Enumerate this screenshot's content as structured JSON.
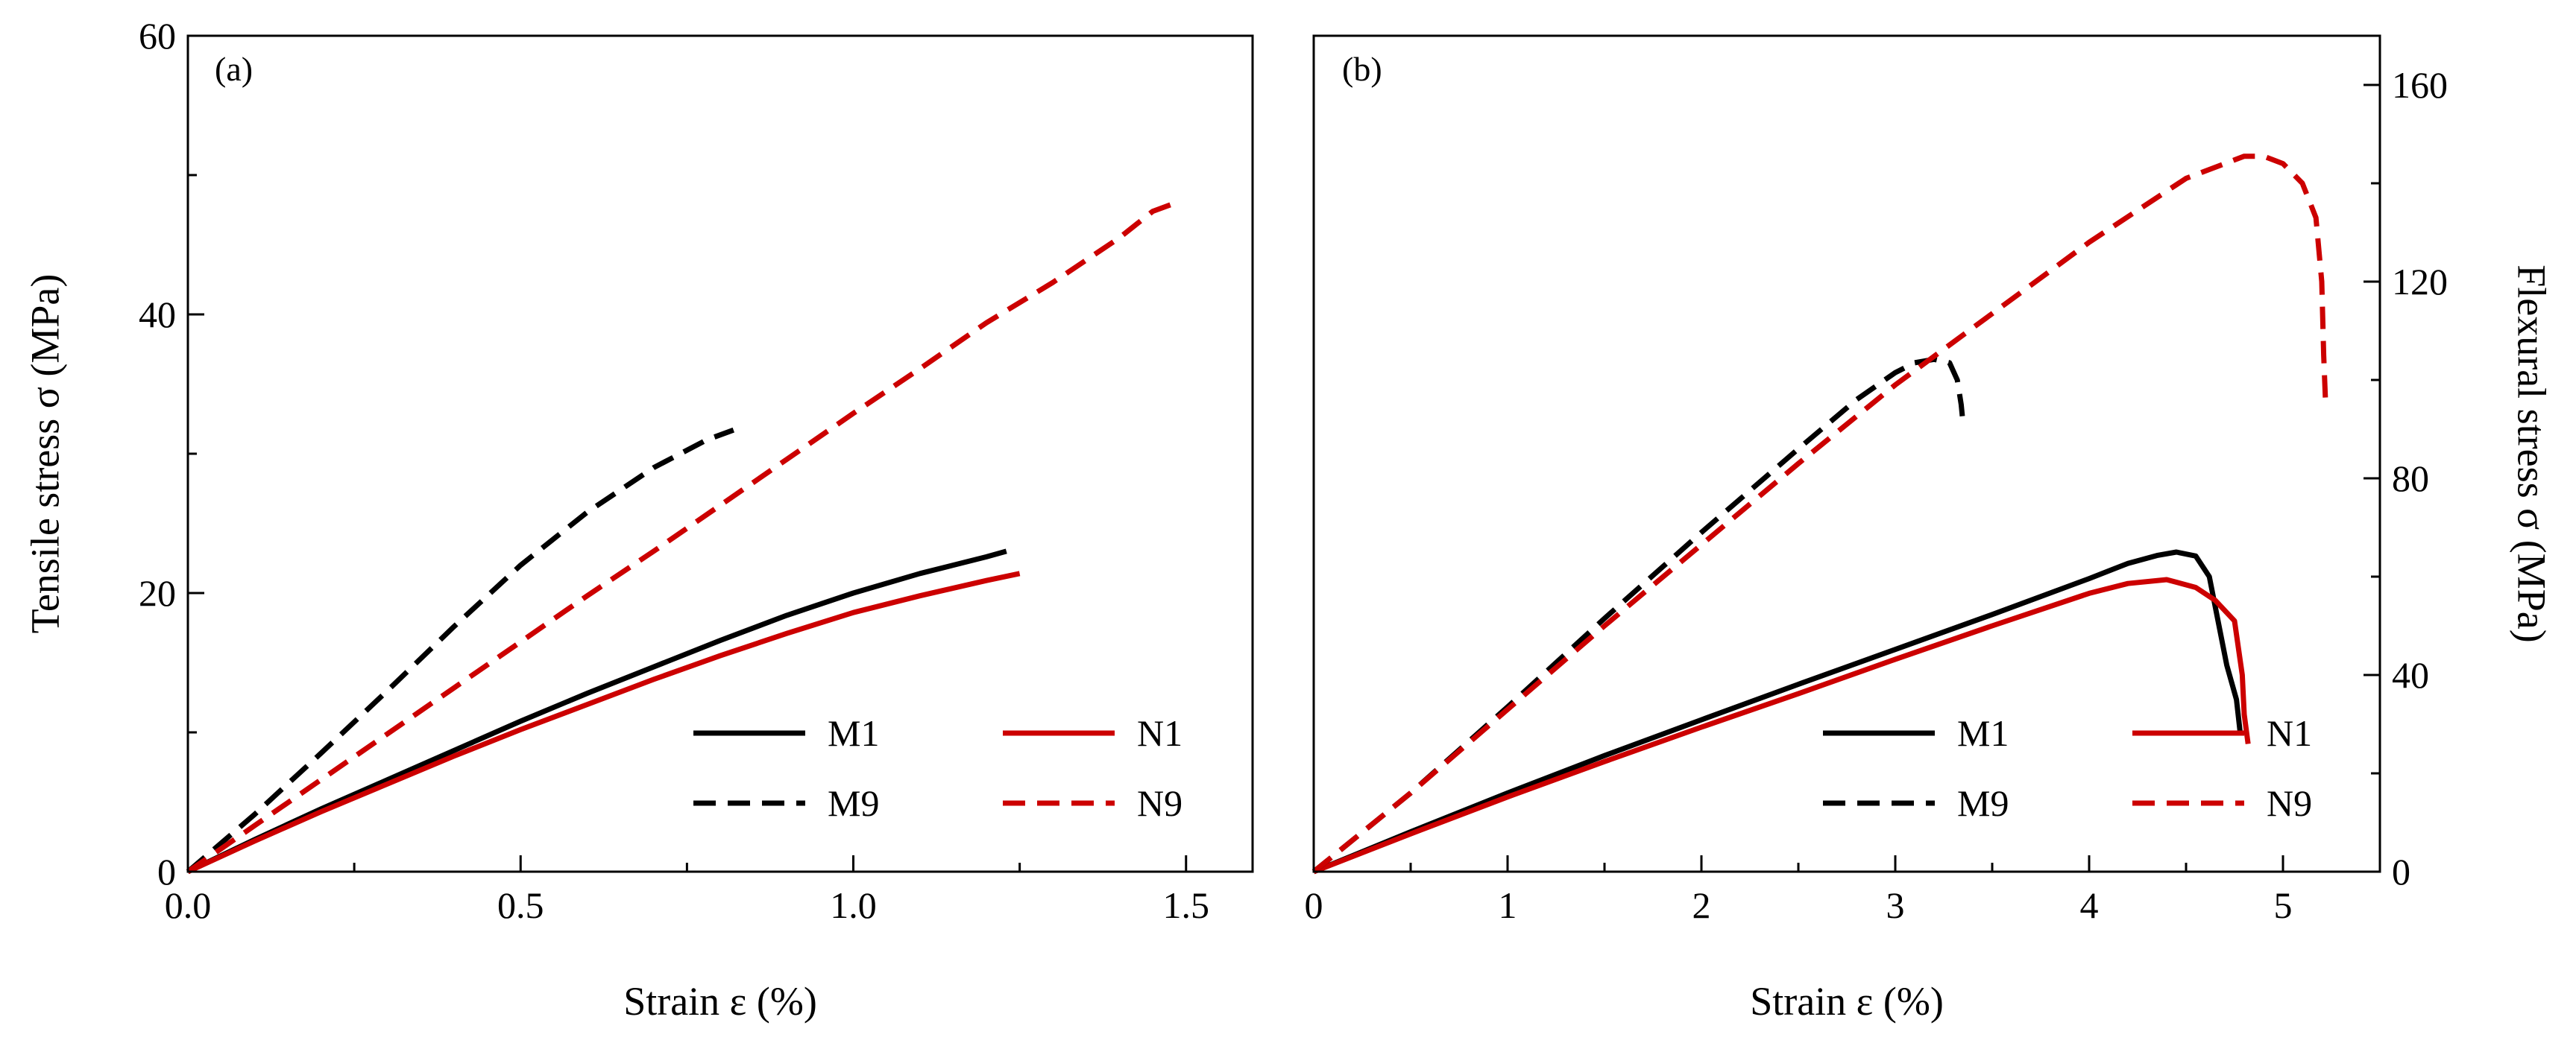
{
  "chart_data": [
    {
      "type": "line",
      "panel_label": "(a)",
      "xlabel": "Strain ε (%)",
      "ylabel": "Tensile stress σ (MPa)",
      "xlim": [
        0,
        1.6
      ],
      "ylim": [
        0,
        60
      ],
      "xticks": [
        {
          "value": 0.0,
          "label": "0.0"
        },
        {
          "value": 0.5,
          "label": "0.5"
        },
        {
          "value": 1.0,
          "label": "1.0"
        },
        {
          "value": 1.5,
          "label": "1.5"
        }
      ],
      "yticks": [
        {
          "value": 0,
          "label": "0"
        },
        {
          "value": 20,
          "label": "20"
        },
        {
          "value": 40,
          "label": "40"
        },
        {
          "value": 60,
          "label": "60"
        }
      ],
      "grid": false,
      "legend": {
        "position": "lower-right",
        "columns": 2,
        "order": [
          "M1",
          "N1",
          "M9",
          "N9"
        ]
      },
      "series": [
        {
          "name": "M1",
          "color": "#000000",
          "dash": "solid",
          "points": [
            [
              0,
              0
            ],
            [
              0.1,
              2.3
            ],
            [
              0.2,
              4.5
            ],
            [
              0.3,
              6.6
            ],
            [
              0.4,
              8.7
            ],
            [
              0.5,
              10.8
            ],
            [
              0.6,
              12.8
            ],
            [
              0.7,
              14.7
            ],
            [
              0.8,
              16.6
            ],
            [
              0.9,
              18.4
            ],
            [
              1.0,
              20.0
            ],
            [
              1.1,
              21.4
            ],
            [
              1.2,
              22.6
            ],
            [
              1.23,
              23.0
            ]
          ]
        },
        {
          "name": "N1",
          "color": "#cc0000",
          "dash": "solid",
          "points": [
            [
              0,
              0
            ],
            [
              0.1,
              2.2
            ],
            [
              0.2,
              4.3
            ],
            [
              0.3,
              6.3
            ],
            [
              0.4,
              8.3
            ],
            [
              0.5,
              10.2
            ],
            [
              0.6,
              12.0
            ],
            [
              0.7,
              13.8
            ],
            [
              0.8,
              15.5
            ],
            [
              0.9,
              17.1
            ],
            [
              1.0,
              18.6
            ],
            [
              1.1,
              19.8
            ],
            [
              1.2,
              20.9
            ],
            [
              1.25,
              21.4
            ]
          ]
        },
        {
          "name": "M9",
          "color": "#000000",
          "dash": "dashed",
          "points": [
            [
              0,
              0
            ],
            [
              0.1,
              4.1
            ],
            [
              0.2,
              8.5
            ],
            [
              0.3,
              13.0
            ],
            [
              0.4,
              17.6
            ],
            [
              0.5,
              22.0
            ],
            [
              0.6,
              25.8
            ],
            [
              0.7,
              29.0
            ],
            [
              0.78,
              31.0
            ],
            [
              0.82,
              31.7
            ]
          ]
        },
        {
          "name": "N9",
          "color": "#cc0000",
          "dash": "dashed",
          "points": [
            [
              0,
              0
            ],
            [
              0.1,
              3.3
            ],
            [
              0.2,
              6.6
            ],
            [
              0.3,
              9.9
            ],
            [
              0.4,
              13.2
            ],
            [
              0.5,
              16.5
            ],
            [
              0.6,
              19.8
            ],
            [
              0.7,
              23.0
            ],
            [
              0.8,
              26.3
            ],
            [
              0.9,
              29.6
            ],
            [
              1.0,
              32.9
            ],
            [
              1.1,
              36.1
            ],
            [
              1.2,
              39.4
            ],
            [
              1.3,
              42.3
            ],
            [
              1.4,
              45.5
            ],
            [
              1.45,
              47.4
            ],
            [
              1.49,
              48.1
            ]
          ]
        }
      ]
    },
    {
      "type": "line",
      "panel_label": "(b)",
      "xlabel": "Strain ε (%)",
      "ylabel": "Flexural stress σ (MPa)",
      "y_axis_side": "right",
      "xlim": [
        0,
        5.5
      ],
      "ylim": [
        0,
        170
      ],
      "xticks": [
        {
          "value": 0,
          "label": "0"
        },
        {
          "value": 1,
          "label": "1"
        },
        {
          "value": 2,
          "label": "2"
        },
        {
          "value": 3,
          "label": "3"
        },
        {
          "value": 4,
          "label": "4"
        },
        {
          "value": 5,
          "label": "5"
        }
      ],
      "yticks": [
        {
          "value": 0,
          "label": "0"
        },
        {
          "value": 40,
          "label": "40"
        },
        {
          "value": 80,
          "label": "80"
        },
        {
          "value": 120,
          "label": "120"
        },
        {
          "value": 160,
          "label": "160"
        }
      ],
      "grid": false,
      "legend": {
        "position": "lower-right",
        "columns": 2,
        "order": [
          "M1",
          "N1",
          "M9",
          "N9"
        ]
      },
      "series": [
        {
          "name": "M1",
          "color": "#000000",
          "dash": "solid",
          "points": [
            [
              0,
              0
            ],
            [
              0.5,
              8.1
            ],
            [
              1,
              16.0
            ],
            [
              1.5,
              23.6
            ],
            [
              2,
              30.9
            ],
            [
              2.5,
              38.1
            ],
            [
              3,
              45.2
            ],
            [
              3.5,
              52.3
            ],
            [
              4,
              59.6
            ],
            [
              4.2,
              62.7
            ],
            [
              4.35,
              64.3
            ],
            [
              4.45,
              65.0
            ],
            [
              4.55,
              64.2
            ],
            [
              4.62,
              60.0
            ],
            [
              4.66,
              52.0
            ],
            [
              4.71,
              42.0
            ],
            [
              4.76,
              35.0
            ],
            [
              4.78,
              28.0
            ]
          ]
        },
        {
          "name": "N1",
          "color": "#cc0000",
          "dash": "solid",
          "points": [
            [
              0,
              0
            ],
            [
              0.5,
              7.7
            ],
            [
              1,
              15.2
            ],
            [
              1.5,
              22.4
            ],
            [
              2,
              29.4
            ],
            [
              2.5,
              36.2
            ],
            [
              3,
              43.2
            ],
            [
              3.5,
              50.0
            ],
            [
              4,
              56.6
            ],
            [
              4.2,
              58.6
            ],
            [
              4.4,
              59.4
            ],
            [
              4.55,
              57.8
            ],
            [
              4.65,
              55.2
            ],
            [
              4.75,
              51.0
            ],
            [
              4.79,
              40.0
            ],
            [
              4.8,
              32.0
            ],
            [
              4.82,
              26.0
            ]
          ]
        },
        {
          "name": "M9",
          "color": "#000000",
          "dash": "dashed",
          "points": [
            [
              0,
              0
            ],
            [
              0.5,
              16.0
            ],
            [
              1,
              33.5
            ],
            [
              1.5,
              51.5
            ],
            [
              2,
              69.0
            ],
            [
              2.5,
              86.0
            ],
            [
              2.8,
              96.0
            ],
            [
              3,
              101.5
            ],
            [
              3.1,
              103.5
            ],
            [
              3.2,
              104.2
            ],
            [
              3.28,
              103.5
            ],
            [
              3.32,
              100.0
            ],
            [
              3.34,
              95.0
            ],
            [
              3.35,
              91.0
            ]
          ]
        },
        {
          "name": "N9",
          "color": "#cc0000",
          "dash": "dashed",
          "points": [
            [
              0,
              0
            ],
            [
              0.5,
              16.0
            ],
            [
              1,
              33.0
            ],
            [
              1.5,
              50.0
            ],
            [
              2,
              66.5
            ],
            [
              2.5,
              83.0
            ],
            [
              3,
              99.0
            ],
            [
              3.5,
              113.5
            ],
            [
              4,
              128.0
            ],
            [
              4.5,
              141.0
            ],
            [
              4.8,
              145.5
            ],
            [
              4.9,
              145.5
            ],
            [
              5.0,
              144.0
            ],
            [
              5.1,
              140.0
            ],
            [
              5.17,
              133.0
            ],
            [
              5.2,
              120.0
            ],
            [
              5.21,
              105.0
            ],
            [
              5.22,
              95.0
            ]
          ]
        }
      ]
    }
  ]
}
